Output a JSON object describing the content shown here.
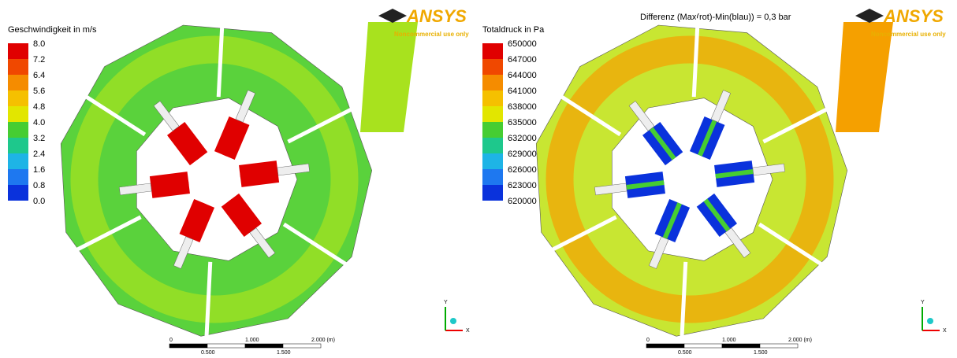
{
  "left": {
    "legend_title": "Geschwindigkeit in m/s",
    "legend_ticks": [
      "8.0",
      "7.2",
      "6.4",
      "5.6",
      "4.8",
      "4.0",
      "3.2",
      "2.4",
      "1.6",
      "0.8",
      "0.0"
    ],
    "logo": "ANSYS",
    "logo_note": "Noncommercial use only",
    "scale_top": [
      "0",
      "1.000",
      "2.000 (m)"
    ],
    "scale_bottom": [
      "0.500",
      "1.500"
    ],
    "axis_x": "X",
    "axis_y": "Y"
  },
  "right": {
    "title": "Differenz (Max(rot)-Min(blau)) = 0,3 bar",
    "legend_title": "Totaldruck in Pa",
    "legend_ticks": [
      "650000",
      "647000",
      "644000",
      "641000",
      "638000",
      "635000",
      "632000",
      "629000",
      "626000",
      "623000",
      "620000"
    ],
    "logo": "ANSYS",
    "logo_note": "Noncommercial use only",
    "scale_top": [
      "0",
      "1.000",
      "2.000 (m)"
    ],
    "scale_bottom": [
      "0.500",
      "1.500"
    ],
    "axis_x": "X",
    "axis_y": "Y"
  }
}
